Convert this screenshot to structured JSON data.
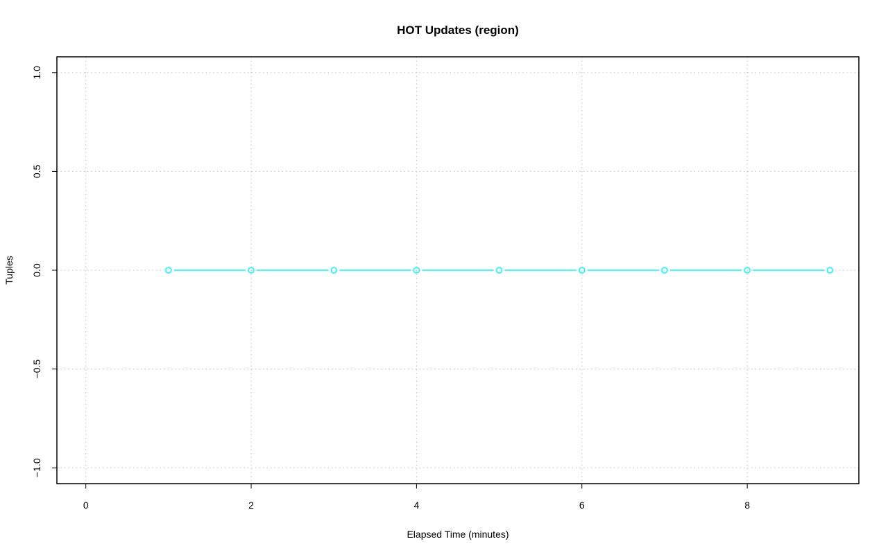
{
  "chart_data": {
    "type": "line",
    "title": "HOT Updates (region)",
    "xlabel": "Elapsed Time (minutes)",
    "ylabel": "Tuples",
    "xlim": [
      -0.35,
      9.35
    ],
    "ylim": [
      -1.08,
      1.08
    ],
    "x_ticks": [
      0,
      2,
      4,
      6,
      8
    ],
    "y_ticks": [
      -1.0,
      -0.5,
      0.0,
      0.5,
      1.0
    ],
    "x_tick_labels": [
      "0",
      "2",
      "4",
      "6",
      "8"
    ],
    "y_tick_labels": [
      "−1.0",
      "−0.5",
      "0.0",
      "0.5",
      "1.0"
    ],
    "grid": true,
    "series": [
      {
        "color": "#00ffff",
        "marker": "open-circle",
        "x": [
          1,
          2,
          3,
          4,
          5,
          6,
          7,
          8,
          9
        ],
        "y": [
          0,
          0,
          0,
          0,
          0,
          0,
          0,
          0,
          0
        ]
      }
    ]
  }
}
